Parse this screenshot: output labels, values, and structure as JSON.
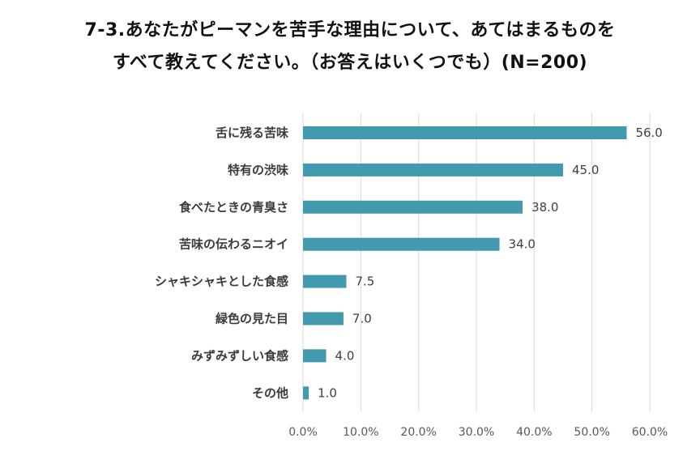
{
  "title": {
    "line1": "7-3.あなたがピーマンを苦手な理由について、あてはまるものを",
    "line2": "すべて教えてください。（お答えはいくつでも）(N=200)"
  },
  "chart_data": {
    "type": "bar",
    "orientation": "horizontal",
    "title": "7-3.あなたがピーマンを苦手な理由について、あてはまるものを すべて教えてください。（お答えはいくつでも）(N=200)",
    "categories": [
      "舌に残る苦味",
      "特有の渋味",
      "食べたときの青臭さ",
      "苦味の伝わるニオイ",
      "シャキシャキとした食感",
      "緑色の見た目",
      "みずみずしい食感",
      "その他"
    ],
    "values": [
      56.0,
      45.0,
      38.0,
      34.0,
      7.5,
      7.0,
      4.0,
      1.0
    ],
    "value_labels": [
      "56.0",
      "45.0",
      "38.0",
      "34.0",
      "7.5",
      "7.0",
      "4.0",
      "1.0"
    ],
    "xlim": [
      0,
      60
    ],
    "xticks": [
      0,
      10,
      20,
      30,
      40,
      50,
      60
    ],
    "xtick_labels": [
      "0.0%",
      "10.0%",
      "20.0%",
      "30.0%",
      "40.0%",
      "50.0%",
      "60.0%"
    ],
    "xlabel": "",
    "ylabel": "",
    "grid": true,
    "bar_color": "#4399ad",
    "grid_color": "#d9d9d9"
  }
}
